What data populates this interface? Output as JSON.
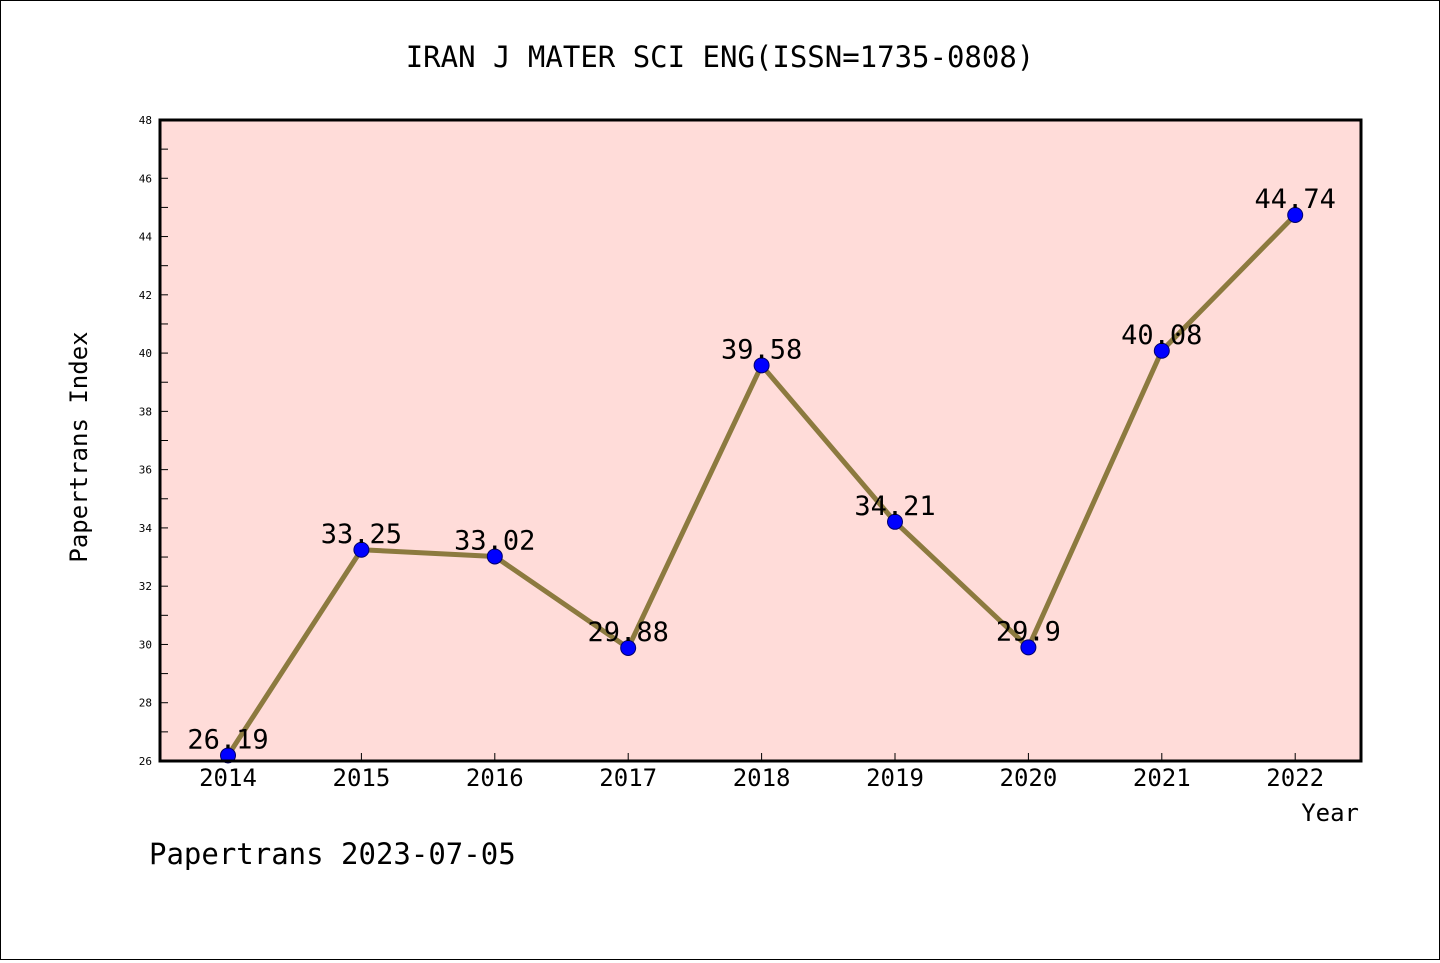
{
  "chart_data": {
    "type": "line",
    "title": "IRAN J MATER SCI ENG(ISSN=1735-0808)",
    "xlabel": "Year",
    "ylabel": "Papertrans Index",
    "categories": [
      "2014",
      "2015",
      "2016",
      "2017",
      "2018",
      "2019",
      "2020",
      "2021",
      "2022"
    ],
    "values": [
      26.19,
      33.25,
      33.02,
      29.88,
      39.58,
      34.21,
      29.9,
      40.08,
      44.74
    ],
    "data_labels": [
      "26.19",
      "33.25",
      "33.02",
      "29.88",
      "39.58",
      "34.21",
      "29.9",
      "40.08",
      "44.74"
    ],
    "ylim": [
      26,
      48
    ],
    "yticks": [
      "26",
      "28",
      "30",
      "32",
      "34",
      "36",
      "38",
      "40",
      "42",
      "44",
      "46",
      "48"
    ],
    "grid": false,
    "legend": "none",
    "colors": {
      "plot_background": "#ffdcd9",
      "line": "#8c7a3f",
      "marker": "#0000ff",
      "axes": "#000000"
    }
  },
  "footer": {
    "text": "Papertrans 2023-07-05"
  }
}
